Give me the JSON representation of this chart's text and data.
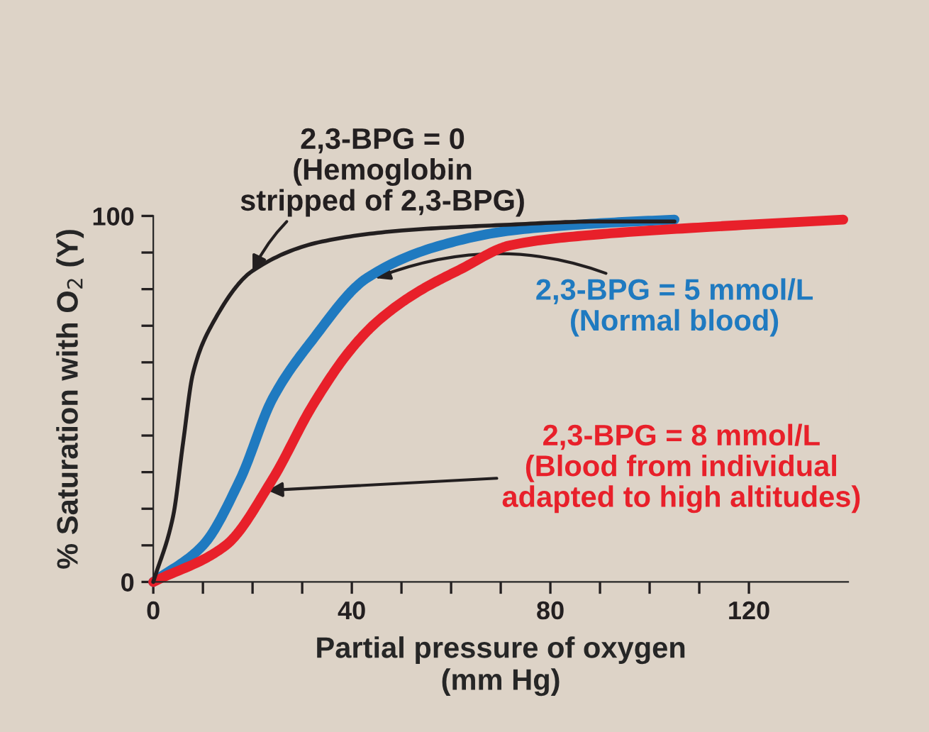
{
  "chart_data": {
    "type": "line",
    "xlabel": "Partial pressure of oxygen\n(mm Hg)",
    "ylabel": "% Saturation with O$_{2}$ (Y)",
    "xlim": [
      0,
      140
    ],
    "ylim": [
      0,
      100
    ],
    "xticks": [
      0,
      {
        "value": 10,
        "label": null
      },
      {
        "value": 20,
        "label": null
      },
      {
        "value": 30,
        "label": null
      },
      40,
      {
        "value": 50,
        "label": null
      },
      {
        "value": 60,
        "label": null
      },
      {
        "value": 70,
        "label": null
      },
      80,
      {
        "value": 90,
        "label": null
      },
      {
        "value": 100,
        "label": null
      },
      {
        "value": 110,
        "label": null
      },
      120
    ],
    "yticks": [
      0,
      {
        "value": 10,
        "label": null
      },
      {
        "value": 20,
        "label": null
      },
      {
        "value": 30,
        "label": null
      },
      {
        "value": 40,
        "label": null
      },
      {
        "value": 50,
        "label": null
      },
      {
        "value": 60,
        "label": null
      },
      {
        "value": 70,
        "label": null
      },
      {
        "value": 80,
        "label": null
      },
      {
        "value": 90,
        "label": null
      },
      100
    ],
    "grid": false,
    "legend": false,
    "marker": "none",
    "line_style": "solid",
    "series": [
      {
        "color": "#231f20",
        "x": [
          0,
          4,
          6,
          8,
          11.7,
          20,
          34,
          50,
          70,
          90,
          105
        ],
        "values": [
          0,
          18,
          38,
          57,
          70,
          85,
          93,
          96,
          97.5,
          98.5,
          98.5
        ]
      },
      {
        "color": "#1f7ac0",
        "x": [
          0,
          10,
          17.5,
          24,
          32,
          43,
          58,
          72,
          90,
          105
        ],
        "values": [
          0,
          10,
          28,
          50,
          66,
          83,
          92,
          96,
          98,
          99
        ]
      },
      {
        "color": "#e8202a",
        "x": [
          0,
          14.6,
          24,
          32,
          39.5,
          45,
          53,
          62,
          72,
          90,
          112,
          139
        ],
        "values": [
          0,
          10,
          28,
          48,
          63,
          71,
          79,
          85.5,
          92,
          95,
          97,
          99
        ]
      }
    ],
    "annotations": [
      {
        "text": "2,3-BPG = 0\n(Hemoglobin\nstripped of 2,3-BPG)",
        "x": 20,
        "y": 85
      },
      {
        "text": "2,3-BPG = 5 mmol/L\n(Normal blood)",
        "x": 44.7,
        "y": 83
      },
      {
        "text": "2,3-BPG = 8 mmol/L\n(Blood from individual\nadapted to high altitudes)",
        "x": 23,
        "y": 25
      }
    ]
  }
}
